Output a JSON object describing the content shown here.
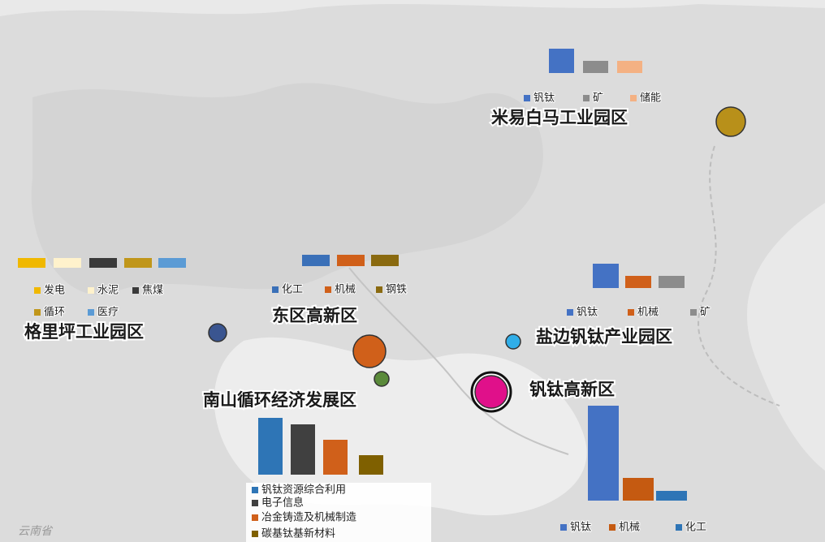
{
  "zones": [
    {
      "label": "米易白马工业园区",
      "color": "#b8901a",
      "chart": {
        "series": [
          {
            "name": "钒钛",
            "color": "#4472c4",
            "value": 30
          },
          {
            "name": "矿",
            "color": "#8c8c8c",
            "value": 15
          },
          {
            "name": "储能",
            "color": "#f4b183",
            "value": 15
          }
        ]
      }
    },
    {
      "label": "格里坪工业园区",
      "color": "#3a5590",
      "chart": {
        "series": [
          {
            "name": "发电",
            "color": "#f0b800",
            "value": 12
          },
          {
            "name": "水泥",
            "color": "#fff2cc",
            "value": 12
          },
          {
            "name": "焦煤",
            "color": "#3a3a3a",
            "value": 12
          },
          {
            "name": "循环",
            "color": "#c0961a",
            "value": 12
          },
          {
            "name": "医疗",
            "color": "#5b9bd5",
            "value": 12
          }
        ]
      }
    },
    {
      "label": "东区高新区",
      "color": "#d0601a",
      "chart": {
        "series": [
          {
            "name": "化工",
            "color": "#3a70b8",
            "value": 14
          },
          {
            "name": "机械",
            "color": "#d0601a",
            "value": 14
          },
          {
            "name": "钢铁",
            "color": "#8a6a10",
            "value": 14
          }
        ]
      }
    },
    {
      "label": "盐边钒钛产业园区",
      "color": "#30aee8",
      "chart": {
        "series": [
          {
            "name": "钒钛",
            "color": "#4472c4",
            "value": 30
          },
          {
            "name": "机械",
            "color": "#d0601a",
            "value": 15
          },
          {
            "name": "矿",
            "color": "#8c8c8c",
            "value": 15
          }
        ]
      }
    },
    {
      "label": "南山循环经济发展区",
      "color": "#5a8a3a",
      "chart": {
        "series": [
          {
            "name": "钒钛资源综合利用",
            "color": "#2e75b6",
            "value": 70
          },
          {
            "name": "电子信息",
            "color": "#404040",
            "value": 62
          },
          {
            "name": "冶金铸造及机械制造",
            "color": "#d0601a",
            "value": 43
          },
          {
            "name": "碳基钛基新材料",
            "color": "#7f6000",
            "value": 24
          }
        ]
      }
    },
    {
      "label": "钒钛高新区",
      "color": "#e0108a",
      "chart": {
        "series": [
          {
            "name": "钒钛",
            "color": "#4472c4",
            "value": 117
          },
          {
            "name": "机械",
            "color": "#c55a11",
            "value": 28
          },
          {
            "name": "化工",
            "color": "#2e75b6",
            "value": 12
          }
        ]
      }
    }
  ],
  "map_labels": [
    "云南省"
  ]
}
